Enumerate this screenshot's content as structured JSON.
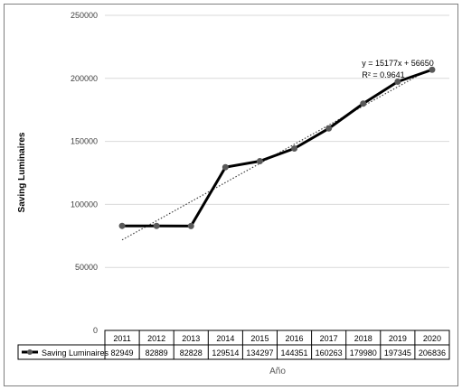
{
  "chart_data": {
    "type": "line",
    "x": [
      "2011",
      "2012",
      "2013",
      "2014",
      "2015",
      "2016",
      "2017",
      "2018",
      "2019",
      "2020"
    ],
    "series": [
      {
        "name": "Saving Luminaires",
        "values": [
          82949,
          82889,
          82828,
          129514,
          134297,
          144351,
          160263,
          179980,
          197345,
          206836
        ],
        "color": "#000000",
        "marker_color": "#595959"
      }
    ],
    "trendline": {
      "equation": "y = 15177x + 56650",
      "r2": "R² = 0.9641",
      "slope": 15177,
      "intercept": 56650,
      "style": "dotted",
      "color": "#404040"
    },
    "ylabel": "Saving Luminaires",
    "xlabel": "Año",
    "ylim": [
      0,
      250000
    ],
    "yticks": [
      "0",
      "50000",
      "100000",
      "150000",
      "200000",
      "250000"
    ],
    "grid": true,
    "data_table": true
  }
}
